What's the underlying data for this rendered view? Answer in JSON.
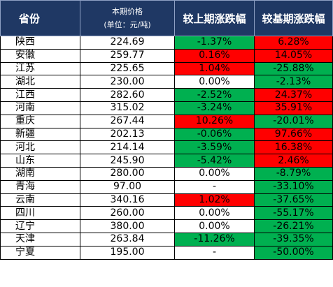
{
  "header": {
    "province": "省份",
    "price_line1": "本期价格",
    "price_line2": "(单位：元/吨)",
    "wow": "较上期涨跌幅",
    "yoy": "较基期涨跌幅"
  },
  "colors": {
    "header_bg": "#1f3864",
    "increase": "#ff0000",
    "decrease": "#00b050"
  },
  "rows": [
    {
      "province": "陕西",
      "price": "224.69",
      "wow": "-1.37%",
      "wow_dir": "down",
      "yoy": "6.28%",
      "yoy_dir": "up"
    },
    {
      "province": "安徽",
      "price": "259.77",
      "wow": "0.16%",
      "wow_dir": "up",
      "yoy": "14.05%",
      "yoy_dir": "up"
    },
    {
      "province": "江苏",
      "price": "225.65",
      "wow": "1.04%",
      "wow_dir": "up",
      "yoy": "-25.88%",
      "yoy_dir": "down"
    },
    {
      "province": "湖北",
      "price": "230.00",
      "wow": "0.00%",
      "wow_dir": "flat",
      "yoy": "-2.13%",
      "yoy_dir": "down"
    },
    {
      "province": "江西",
      "price": "282.60",
      "wow": "-2.52%",
      "wow_dir": "down",
      "yoy": "24.37%",
      "yoy_dir": "up"
    },
    {
      "province": "河南",
      "price": "315.02",
      "wow": "-3.24%",
      "wow_dir": "down",
      "yoy": "35.91%",
      "yoy_dir": "up"
    },
    {
      "province": "重庆",
      "price": "267.44",
      "wow": "10.26%",
      "wow_dir": "up",
      "yoy": "-20.01%",
      "yoy_dir": "down"
    },
    {
      "province": "新疆",
      "price": "202.13",
      "wow": "-0.06%",
      "wow_dir": "down",
      "yoy": "97.66%",
      "yoy_dir": "up"
    },
    {
      "province": "河北",
      "price": "214.14",
      "wow": "-3.59%",
      "wow_dir": "down",
      "yoy": "16.38%",
      "yoy_dir": "up"
    },
    {
      "province": "山东",
      "price": "245.90",
      "wow": "-5.42%",
      "wow_dir": "down",
      "yoy": "2.46%",
      "yoy_dir": "up"
    },
    {
      "province": "湖南",
      "price": "280.00",
      "wow": "0.00%",
      "wow_dir": "flat",
      "yoy": "-8.79%",
      "yoy_dir": "down"
    },
    {
      "province": "青海",
      "price": "97.00",
      "wow": "-",
      "wow_dir": "flat",
      "yoy": "-33.10%",
      "yoy_dir": "down"
    },
    {
      "province": "云南",
      "price": "340.16",
      "wow": "1.02%",
      "wow_dir": "up",
      "yoy": "-37.65%",
      "yoy_dir": "down"
    },
    {
      "province": "四川",
      "price": "260.00",
      "wow": "0.00%",
      "wow_dir": "flat",
      "yoy": "-55.17%",
      "yoy_dir": "down"
    },
    {
      "province": "辽宁",
      "price": "380.00",
      "wow": "0.00%",
      "wow_dir": "flat",
      "yoy": "-26.21%",
      "yoy_dir": "down"
    },
    {
      "province": "天津",
      "price": "263.84",
      "wow": "-11.26%",
      "wow_dir": "down",
      "yoy": "-39.35%",
      "yoy_dir": "down"
    },
    {
      "province": "宁夏",
      "price": "195.00",
      "wow": "-",
      "wow_dir": "flat",
      "yoy": "-50.00%",
      "yoy_dir": "down"
    }
  ]
}
